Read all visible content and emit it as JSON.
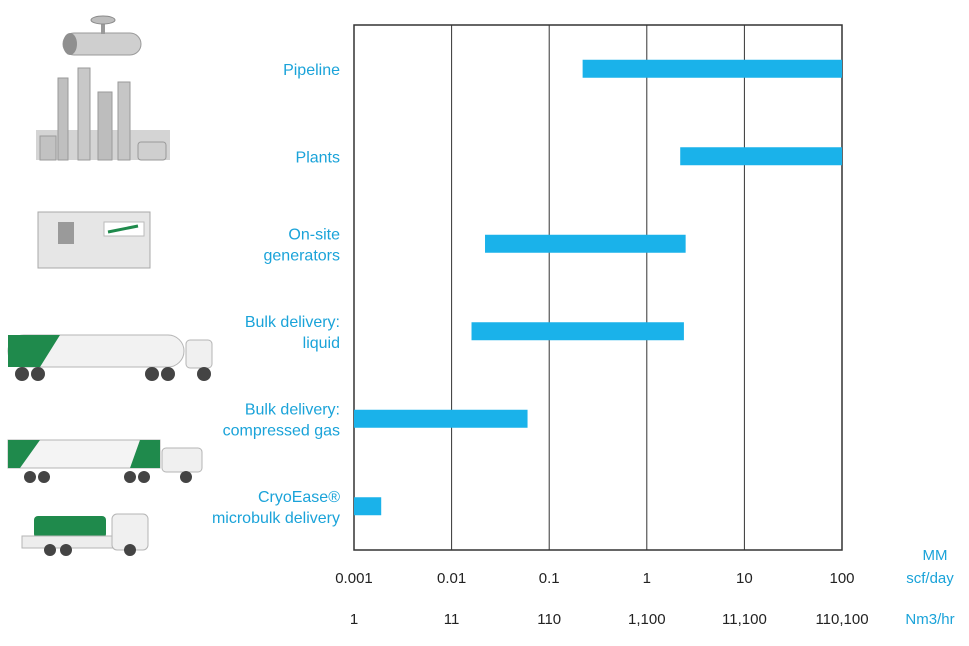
{
  "colors": {
    "bar": "#1ab2ea",
    "label": "#1aa3d9",
    "grid": "#333333",
    "icon_grey": "#c8c8c8",
    "brand_green": "#1f8a4c"
  },
  "icons": [
    "pipeline-icon",
    "plant-icon",
    "onsite-generator-icon",
    "liquid-tanker-truck-icon",
    "tube-trailer-truck-icon",
    "microbulk-truck-icon"
  ],
  "chart_data": {
    "type": "bar",
    "orientation": "horizontal",
    "scale": "log",
    "grid": true,
    "categories": [
      [
        "Pipeline"
      ],
      [
        "Plants"
      ],
      [
        "On-site",
        "generators"
      ],
      [
        "Bulk delivery:",
        "liquid"
      ],
      [
        "Bulk delivery:",
        "compressed gas"
      ],
      [
        "CryoEase®",
        "microbulk delivery"
      ]
    ],
    "ranges": [
      [
        0.22,
        100
      ],
      [
        2.2,
        100
      ],
      [
        0.022,
        2.5
      ],
      [
        0.016,
        2.4
      ],
      [
        0.001,
        0.06
      ],
      [
        0.001,
        0.0019
      ]
    ],
    "xlim": [
      0.001,
      100
    ],
    "x_ticks": [
      "0.001",
      "0.01",
      "0.1",
      "1",
      "10",
      "100"
    ],
    "x_ticks_secondary": [
      "1",
      "11",
      "110",
      "1,100",
      "11,100",
      "110,100"
    ],
    "xlabel": [
      "MM",
      "scf/day"
    ],
    "xlabel_secondary": "Nm3/hr"
  }
}
